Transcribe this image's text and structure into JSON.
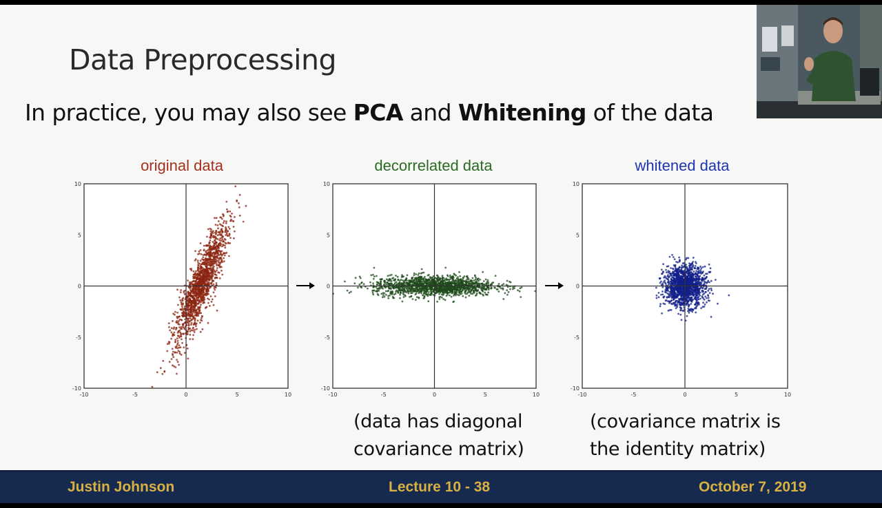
{
  "slide": {
    "title": "Data Preprocessing",
    "subtitle": {
      "pre": "In practice, you may also see ",
      "bold1": "PCA",
      "mid": " and ",
      "bold2": "Whitening",
      "post": " of the data"
    },
    "captions": {
      "decorrelated": [
        "(data has diagonal",
        "covariance matrix)"
      ],
      "whitened": [
        "(covariance matrix is",
        "the identity matrix)"
      ]
    }
  },
  "footer": {
    "author": "Justin Johnson",
    "lecture": "Lecture 10 - 38",
    "date": "October 7, 2019"
  },
  "colors": {
    "original": "#8b2410",
    "decorrelated": "#1d4a1a",
    "whitened": "#121f8a",
    "footer_bg": "#152a4e",
    "footer_text": "#d9b143"
  },
  "chart_data": [
    {
      "type": "scatter",
      "title": "original data",
      "color": "#8b2410",
      "xlim": [
        -10,
        10
      ],
      "ylim": [
        -10,
        10
      ],
      "xticks": [
        "-10",
        "-5",
        "0",
        "5",
        "10"
      ],
      "yticks": [
        "10",
        "5",
        "0",
        "-5",
        "-10"
      ],
      "distribution": {
        "mean": [
          1.5,
          0.2
        ],
        "principal_axis_angle_deg": 68,
        "sd_major": 3.2,
        "sd_minor": 0.6,
        "n": 1500
      }
    },
    {
      "type": "scatter",
      "title": "decorrelated data",
      "color": "#1d4a1a",
      "xlim": [
        -10,
        10
      ],
      "ylim": [
        -10,
        10
      ],
      "xticks": [
        "-10",
        "-5",
        "0",
        "5",
        "10"
      ],
      "yticks": [
        "10",
        "5",
        "0",
        "-5",
        "-10"
      ],
      "distribution": {
        "mean": [
          0,
          0
        ],
        "sd_x": 3.0,
        "sd_y": 0.5,
        "n": 1500
      }
    },
    {
      "type": "scatter",
      "title": "whitened data",
      "color": "#121f8a",
      "xlim": [
        -10,
        10
      ],
      "ylim": [
        -10,
        10
      ],
      "xticks": [
        "-10",
        "-5",
        "0",
        "5",
        "10"
      ],
      "yticks": [
        "10",
        "5",
        "0",
        "-5",
        "-10"
      ],
      "distribution": {
        "mean": [
          0,
          0
        ],
        "sd_x": 1.0,
        "sd_y": 1.0,
        "n": 1500
      }
    }
  ]
}
